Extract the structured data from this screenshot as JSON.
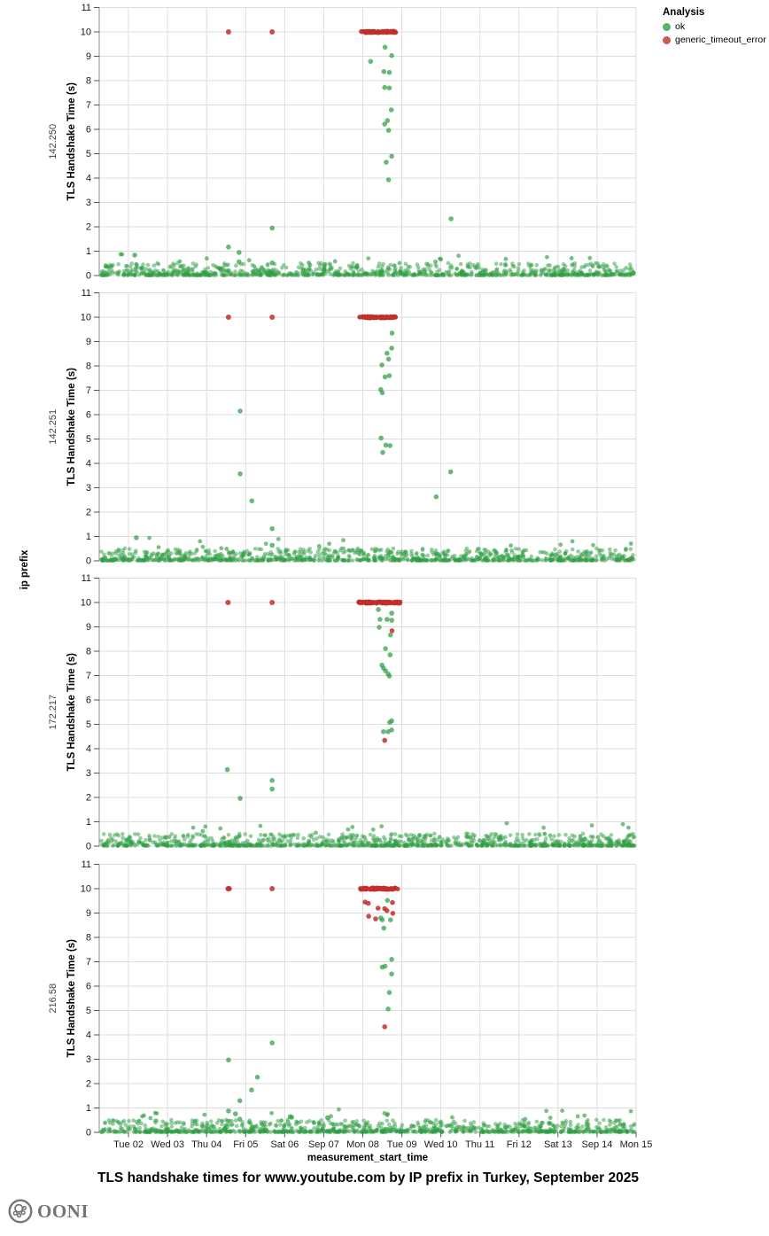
{
  "branding": {
    "logo_text": "OONI"
  },
  "chart_data": {
    "type": "scatter",
    "title": "TLS handshake times for www.youtube.com by IP prefix in Turkey, September 2025",
    "xlabel": "measurement_start_time",
    "ylabel": "TLS Handshake Time (s)",
    "facet_axis_label": "ip prefix",
    "legend": {
      "title": "Analysis",
      "position": "top-right",
      "entries": [
        {
          "label": "ok",
          "color": "#2f9e44"
        },
        {
          "label": "generic_timeout_error",
          "color": "#c22f2c"
        }
      ]
    },
    "colors": {
      "ok": "#2f9e44",
      "error": "#c22f2c",
      "grid": "#dddddd",
      "axis": "#888888",
      "tick": "#555555",
      "tick_label": "#1a1a1a",
      "facet_label": "#444444"
    },
    "grid": true,
    "y_domain": [
      0,
      11
    ],
    "y_ticks": [
      0,
      1,
      2,
      3,
      4,
      5,
      6,
      7,
      8,
      9,
      10,
      11
    ],
    "x_domain_days": [
      1.25,
      15
    ],
    "x_ticks": [
      {
        "day": 2,
        "label": "Tue 02"
      },
      {
        "day": 3,
        "label": "Wed 03"
      },
      {
        "day": 4,
        "label": "Thu 04"
      },
      {
        "day": 5,
        "label": "Fri 05"
      },
      {
        "day": 6,
        "label": "Sat 06"
      },
      {
        "day": 7,
        "label": "Sep 07"
      },
      {
        "day": 8,
        "label": "Mon 08"
      },
      {
        "day": 9,
        "label": "Tue 09"
      },
      {
        "day": 10,
        "label": "Wed 10"
      },
      {
        "day": 11,
        "label": "Thu 11"
      },
      {
        "day": 12,
        "label": "Fri 12"
      },
      {
        "day": 13,
        "label": "Sat 13"
      },
      {
        "day": 14,
        "label": "Sep 14"
      },
      {
        "day": 15,
        "label": "Mon 15"
      }
    ],
    "timeout_value": 10,
    "facets": [
      {
        "label": "142.250",
        "timeout_singles": [
          4.56,
          5.68
        ],
        "timeout_band": {
          "start": 7.92,
          "end": 8.87,
          "count": 70
        },
        "red_points": [],
        "ok_points": [
          [
            8.57,
            9.37
          ],
          [
            8.74,
            9.03
          ],
          [
            8.2,
            8.79
          ],
          [
            8.54,
            8.37
          ],
          [
            8.68,
            8.34
          ],
          [
            8.56,
            7.72
          ],
          [
            8.68,
            7.7
          ],
          [
            8.73,
            6.8
          ],
          [
            8.63,
            6.36
          ],
          [
            8.56,
            6.22
          ],
          [
            8.66,
            5.96
          ],
          [
            8.74,
            4.9
          ],
          [
            8.6,
            4.65
          ],
          [
            8.66,
            3.93
          ],
          [
            10.26,
            2.33
          ],
          [
            5.68,
            1.95
          ],
          [
            4.56,
            1.17
          ],
          [
            4.83,
            0.95
          ],
          [
            2.16,
            0.84
          ],
          [
            4.83,
            0.56
          ],
          [
            5.68,
            0.52
          ]
        ],
        "baseline": {
          "count": 950,
          "bumps": 20,
          "seed": 11
        }
      },
      {
        "label": "142.251",
        "timeout_singles": [
          4.56,
          5.68
        ],
        "timeout_band": {
          "start": 7.92,
          "end": 8.87,
          "count": 72
        },
        "red_points": [],
        "ok_points": [
          [
            8.75,
            9.35
          ],
          [
            8.74,
            8.73
          ],
          [
            8.62,
            8.52
          ],
          [
            8.66,
            8.28
          ],
          [
            8.49,
            8.04
          ],
          [
            8.68,
            7.6
          ],
          [
            8.57,
            7.55
          ],
          [
            8.46,
            7.03
          ],
          [
            8.5,
            6.9
          ],
          [
            4.86,
            6.15
          ],
          [
            8.47,
            5.04
          ],
          [
            8.59,
            4.75
          ],
          [
            8.7,
            4.73
          ],
          [
            8.51,
            4.45
          ],
          [
            10.25,
            3.65
          ],
          [
            4.86,
            3.57
          ],
          [
            9.88,
            2.63
          ],
          [
            5.16,
            2.46
          ],
          [
            5.68,
            1.32
          ],
          [
            2.2,
            0.95
          ],
          [
            5.68,
            0.64
          ]
        ],
        "baseline": {
          "count": 950,
          "bumps": 22,
          "seed": 22
        }
      },
      {
        "label": "172.217",
        "timeout_singles": [
          4.55,
          5.68
        ],
        "timeout_band": {
          "start": 7.87,
          "end": 8.96,
          "count": 95
        },
        "red_points": [
          [
            8.75,
            8.84
          ],
          [
            8.56,
            4.34
          ]
        ],
        "ok_points": [
          [
            8.4,
            9.71
          ],
          [
            8.74,
            9.56
          ],
          [
            8.44,
            9.31
          ],
          [
            8.62,
            9.31
          ],
          [
            8.74,
            9.27
          ],
          [
            8.42,
            8.98
          ],
          [
            8.71,
            8.67
          ],
          [
            8.58,
            8.11
          ],
          [
            8.7,
            7.85
          ],
          [
            8.49,
            7.43
          ],
          [
            8.53,
            7.31
          ],
          [
            8.58,
            7.2
          ],
          [
            8.65,
            7.07
          ],
          [
            8.68,
            6.98
          ],
          [
            8.74,
            5.14
          ],
          [
            8.69,
            5.08
          ],
          [
            8.74,
            4.77
          ],
          [
            8.53,
            4.7
          ],
          [
            8.65,
            4.7
          ],
          [
            4.53,
            3.14
          ],
          [
            5.68,
            2.7
          ],
          [
            5.68,
            2.34
          ],
          [
            4.86,
            1.96
          ]
        ],
        "baseline": {
          "count": 980,
          "bumps": 24,
          "seed": 33
        }
      },
      {
        "label": "216.58",
        "timeout_singles": [
          4.55,
          4.58,
          5.68
        ],
        "timeout_band": {
          "start": 7.94,
          "end": 8.9,
          "count": 80
        },
        "red_points": [
          [
            8.06,
            9.45
          ],
          [
            8.14,
            9.4
          ],
          [
            8.76,
            9.43
          ],
          [
            8.39,
            9.2
          ],
          [
            8.56,
            9.18
          ],
          [
            8.62,
            9.1
          ],
          [
            8.77,
            8.99
          ],
          [
            8.15,
            8.87
          ],
          [
            8.33,
            8.76
          ],
          [
            8.56,
            4.33
          ]
        ],
        "ok_points": [
          [
            8.63,
            9.52
          ],
          [
            8.46,
            8.8
          ],
          [
            8.5,
            8.72
          ],
          [
            8.71,
            8.72
          ],
          [
            8.54,
            8.38
          ],
          [
            8.74,
            7.1
          ],
          [
            8.57,
            6.82
          ],
          [
            8.5,
            6.78
          ],
          [
            8.74,
            6.5
          ],
          [
            8.68,
            5.74
          ],
          [
            8.65,
            5.06
          ],
          [
            5.68,
            3.67
          ],
          [
            4.56,
            2.97
          ],
          [
            5.3,
            2.26
          ],
          [
            5.15,
            1.74
          ],
          [
            4.85,
            1.3
          ],
          [
            4.56,
            0.88
          ],
          [
            4.74,
            0.76
          ],
          [
            4.85,
            0.54
          ],
          [
            6.14,
            0.64
          ],
          [
            6.18,
            0.62
          ],
          [
            7.1,
            0.6
          ]
        ],
        "baseline": {
          "count": 980,
          "bumps": 24,
          "seed": 44
        }
      }
    ]
  }
}
